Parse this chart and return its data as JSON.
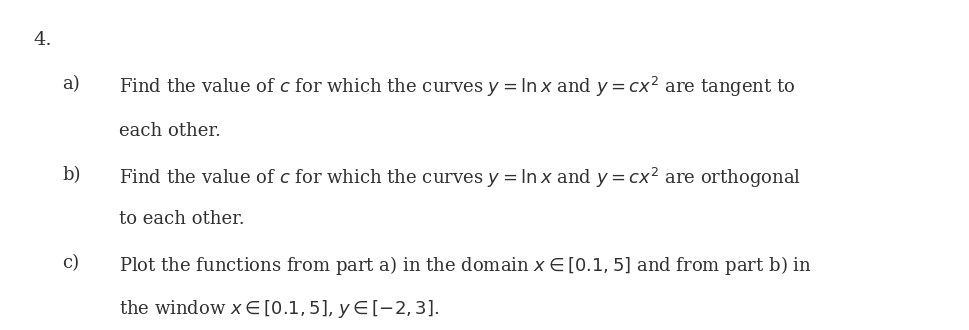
{
  "background_color": "#ffffff",
  "text_color": "#303030",
  "number": "4.",
  "number_fontsize": 14,
  "item_fontsize": 13,
  "items": [
    {
      "label": "a)",
      "line1": "Find the value of $c$ for which the curves $y = \\ln x$ and $y = cx^2$ are tangent to",
      "line2": "each other."
    },
    {
      "label": "b)",
      "line1": "Find the value of $c$ for which the curves $y = \\ln x$ and $y = cx^2$ are orthogonal",
      "line2": "to each other."
    },
    {
      "label": "c)",
      "line1": "Plot the functions from part a) in the domain $x \\in [0.1, 5]$ and from part b) in",
      "line2": "the window $x \\in [0.1, 5]$, $y \\in [-2, 3]$."
    }
  ]
}
